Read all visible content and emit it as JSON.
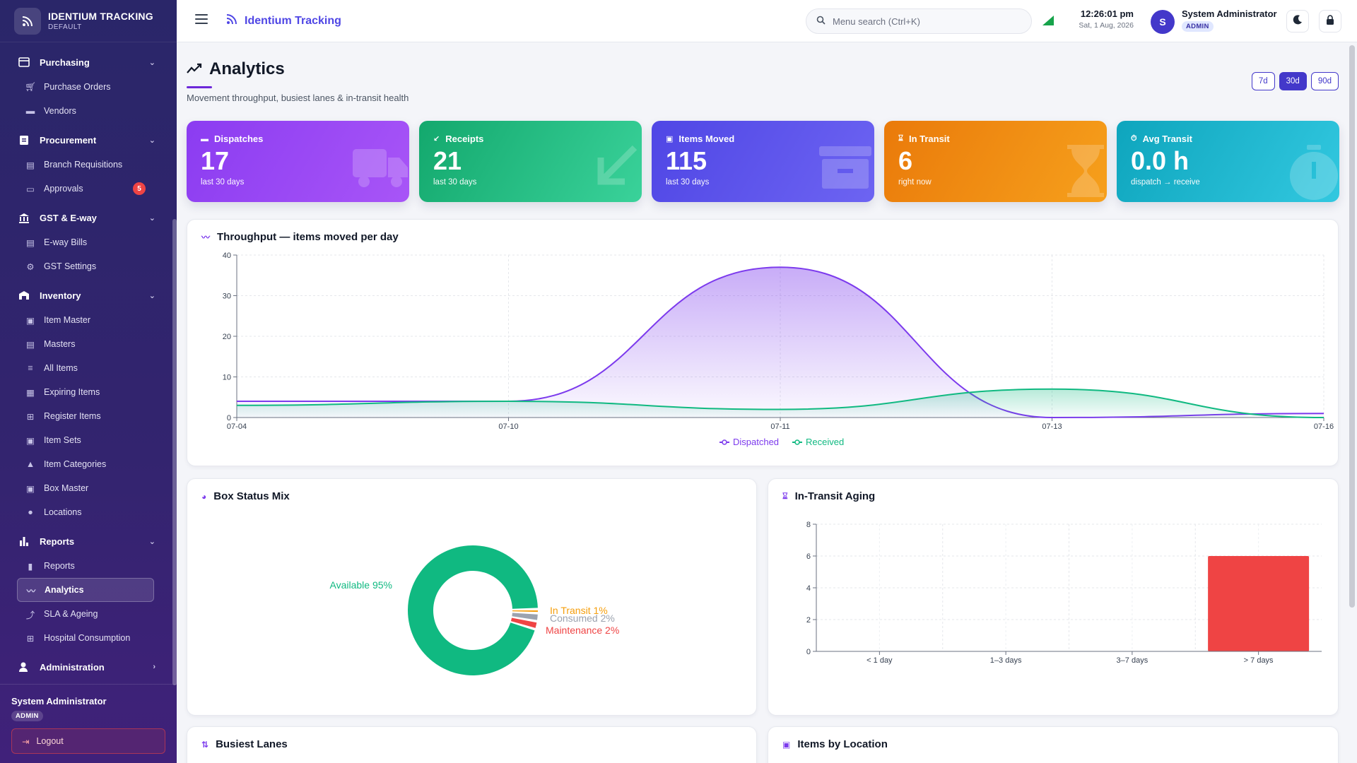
{
  "brand": {
    "name": "IDENTIUM TRACKING",
    "sub": "DEFAULT"
  },
  "sidebar": {
    "groups": [
      {
        "label": "Purchasing",
        "items": [
          "Purchase Orders",
          "Vendors"
        ]
      },
      {
        "label": "Procurement",
        "items": [
          "Branch Requisitions",
          "Approvals"
        ],
        "approvals_badge": "5"
      },
      {
        "label": "GST & E-way",
        "items": [
          "E-way Bills",
          "GST Settings"
        ]
      },
      {
        "label": "Inventory",
        "items": [
          "Item Master",
          "Masters",
          "All Items",
          "Expiring Items",
          "Register Items",
          "Item Sets",
          "Item Categories",
          "Box Master",
          "Locations"
        ]
      },
      {
        "label": "Reports",
        "items": [
          "Reports",
          "Analytics",
          "SLA & Ageing",
          "Hospital Consumption"
        ]
      },
      {
        "label": "Administration",
        "items": []
      }
    ],
    "active_item": "Analytics",
    "footer": {
      "user": "System Administrator",
      "role": "ADMIN",
      "logout": "Logout"
    }
  },
  "topbar": {
    "title": "Identium Tracking",
    "search_placeholder": "Menu search (Ctrl+K)",
    "time": "12:26:01 pm",
    "date": "Sat, 1 Aug, 2026",
    "avatar_initial": "S",
    "user": "System Administrator",
    "role": "ADMIN"
  },
  "page": {
    "title": "Analytics",
    "subtitle": "Movement throughput, busiest lanes & in-transit health",
    "ranges": [
      "7d",
      "30d",
      "90d"
    ],
    "selected_range": "30d"
  },
  "kpis": [
    {
      "label": "Dispatches",
      "value": "17",
      "caption": "last 30 days",
      "icon": "truck-icon"
    },
    {
      "label": "Receipts",
      "value": "21",
      "caption": "last 30 days",
      "icon": "arrow-down-left-icon"
    },
    {
      "label": "Items Moved",
      "value": "115",
      "caption": "last 30 days",
      "icon": "archive-box-icon"
    },
    {
      "label": "In Transit",
      "value": "6",
      "caption": "right now",
      "icon": "hourglass-icon"
    },
    {
      "label": "Avg Transit",
      "value": "0.0 h",
      "caption": "dispatch → receive",
      "icon": "stopwatch-icon"
    }
  ],
  "cards": {
    "throughput": "Throughput — items moved per day",
    "box_status": "Box Status Mix",
    "aging": "In-Transit Aging",
    "lanes": "Busiest Lanes",
    "locations": "Items by Location"
  },
  "chart_data": [
    {
      "type": "area",
      "title": "Throughput — items moved per day",
      "x": [
        "07-04",
        "07-10",
        "07-11",
        "07-13",
        "07-16"
      ],
      "series": [
        {
          "name": "Dispatched",
          "values": [
            4,
            4,
            37,
            0,
            1
          ],
          "color": "#7c3aed"
        },
        {
          "name": "Received",
          "values": [
            3,
            4,
            2,
            7,
            0
          ],
          "color": "#10b981"
        }
      ],
      "ylim": [
        0,
        40
      ],
      "yticks": [
        0,
        10,
        20,
        30,
        40
      ],
      "legend": "bottom-center",
      "grid": true
    },
    {
      "type": "pie",
      "title": "Box Status Mix",
      "categories": [
        "Available",
        "In Transit",
        "Consumed",
        "Maintenance"
      ],
      "labels": [
        "Available 95%",
        "In Transit 1%",
        "Consumed 2%",
        "Maintenance 2%"
      ],
      "values": [
        95,
        1,
        2,
        2
      ],
      "colors": [
        "#10b981",
        "#f59e0b",
        "#9ca3af",
        "#ef4444"
      ],
      "donut": true
    },
    {
      "type": "bar",
      "title": "In-Transit Aging",
      "categories": [
        "< 1 day",
        "1–3 days",
        "3–7 days",
        "> 7 days"
      ],
      "values": [
        0,
        0,
        0,
        6
      ],
      "ylim": [
        0,
        8
      ],
      "yticks": [
        0,
        2,
        4,
        6,
        8
      ],
      "color": "#ef4444",
      "grid": true
    }
  ]
}
